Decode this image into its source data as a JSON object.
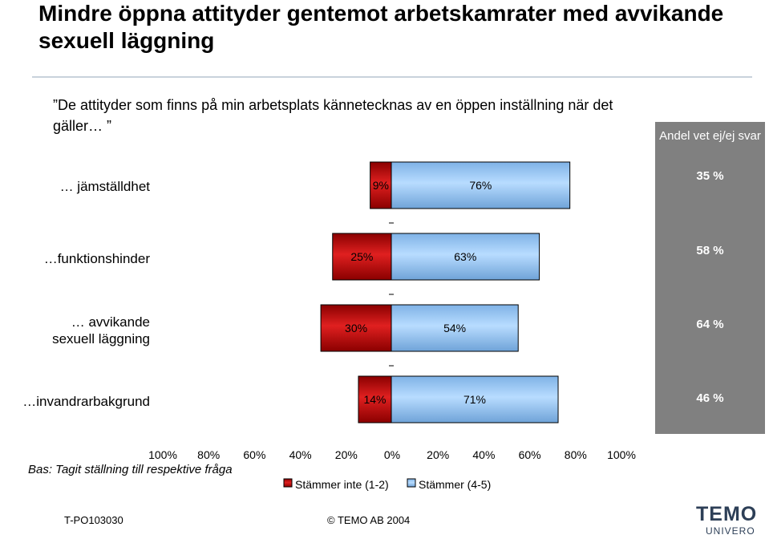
{
  "title": "Mindre öppna attityder gentemot arbetskamrater med avvikande sexuell läggning",
  "question": "”De attityder som finns på min arbetsplats kännetecknas av en öppen inställning när det gäller… ”",
  "side_panel": {
    "header": "Andel vet ej/ej svar",
    "values": [
      "35 %",
      "58 %",
      "64 %",
      "46 %"
    ]
  },
  "basis": "Bas: Tagit ställning till respektive fråga",
  "footer": {
    "code": "T-PO103030",
    "copyright": "© TEMO AB 2004"
  },
  "logo": {
    "name": "TEMO",
    "sub": "UNIVERO"
  },
  "colors": {
    "disagree": "#c00000",
    "agree": "#99ccff",
    "panel": "#808080"
  },
  "chart_data": {
    "type": "bar",
    "orientation": "horizontal-diverging",
    "categories": [
      "… jämställdhet",
      "…funktionshinder",
      "… avvikande sexuell läggning",
      "…invandrarbakgrund"
    ],
    "series": [
      {
        "name": "Stämmer inte (1-2)",
        "values": [
          9,
          25,
          30,
          14
        ],
        "labels": [
          "9%",
          "25%",
          "30%",
          "14%"
        ]
      },
      {
        "name": "Stämmer (4-5)",
        "values": [
          76,
          63,
          54,
          71
        ],
        "labels": [
          "76%",
          "63%",
          "54%",
          "71%"
        ]
      }
    ],
    "x_ticks": [
      "100%",
      "80%",
      "60%",
      "40%",
      "20%",
      "0%",
      "20%",
      "40%",
      "60%",
      "80%",
      "100%"
    ],
    "xlim": [
      -100,
      100
    ],
    "legend_position": "bottom"
  }
}
